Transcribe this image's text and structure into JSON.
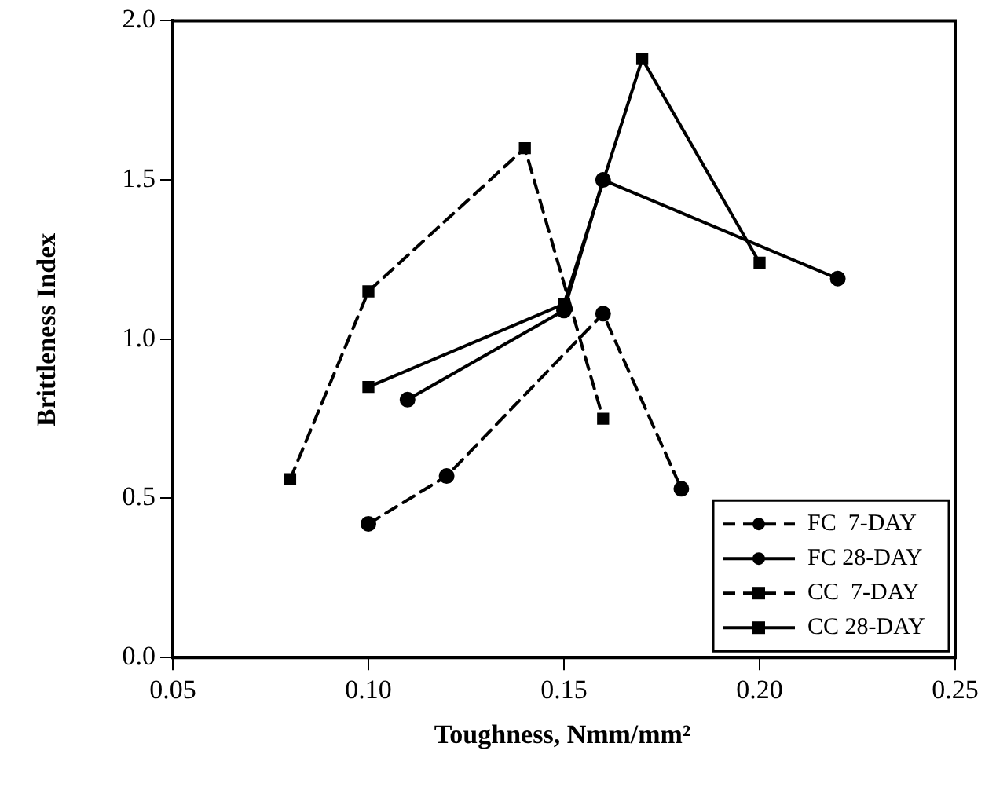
{
  "chart_data": {
    "type": "line",
    "xlabel": "Toughness,  Nmm/mm²",
    "ylabel": "Brittleness Index",
    "xlim": [
      0.05,
      0.25
    ],
    "xticks": [
      {
        "value": 0.05,
        "label": "0.05"
      },
      {
        "value": 0.1,
        "label": "0.10"
      },
      {
        "value": 0.15,
        "label": "0.15"
      },
      {
        "value": 0.2,
        "label": "0.20"
      },
      {
        "value": 0.25,
        "label": "0.25"
      }
    ],
    "ylim": [
      0,
      2
    ],
    "yticks": [
      {
        "value": 0,
        "label": "0.0"
      },
      {
        "value": 0.5,
        "label": "0.5"
      },
      {
        "value": 1,
        "label": "1.0"
      },
      {
        "value": 1.5,
        "label": "1.5"
      },
      {
        "value": 2,
        "label": "2.0"
      }
    ],
    "grid": false,
    "legend": "bottom right",
    "series": [
      {
        "name": "FC  7-DAY",
        "color": "#000000",
        "line_style": "dashed",
        "marker": "circle",
        "x": [
          0.1,
          0.12,
          0.16,
          0.18
        ],
        "values": [
          0.42,
          0.57,
          1.08,
          0.53
        ]
      },
      {
        "name": "FC 28-DAY",
        "color": "#000000",
        "line_style": "solid",
        "marker": "circle",
        "x": [
          0.11,
          0.15,
          0.16,
          0.22
        ],
        "values": [
          0.81,
          1.09,
          1.5,
          1.19
        ]
      },
      {
        "name": "CC  7-DAY",
        "color": "#000000",
        "line_style": "dashed",
        "marker": "square",
        "x": [
          0.08,
          0.1,
          0.14,
          0.16
        ],
        "values": [
          0.56,
          1.15,
          1.6,
          0.75
        ]
      },
      {
        "name": "CC 28-DAY",
        "color": "#000000",
        "line_style": "solid",
        "marker": "square",
        "x": [
          0.1,
          0.15,
          0.17,
          0.2
        ],
        "values": [
          0.85,
          1.11,
          1.88,
          1.24
        ]
      }
    ]
  }
}
